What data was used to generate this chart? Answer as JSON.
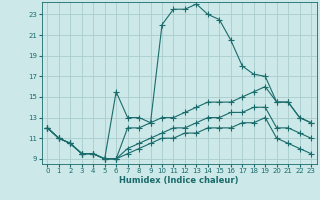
{
  "xlabel": "Humidex (Indice chaleur)",
  "bg_color": "#cce8e8",
  "grid_color": "#aacccc",
  "line_color": "#1a6b6b",
  "xlim": [
    -0.5,
    23.5
  ],
  "ylim": [
    8.5,
    24.2
  ],
  "yticks": [
    9,
    11,
    13,
    15,
    17,
    19,
    21,
    23
  ],
  "xticks": [
    0,
    1,
    2,
    3,
    4,
    5,
    6,
    7,
    8,
    9,
    10,
    11,
    12,
    13,
    14,
    15,
    16,
    17,
    18,
    19,
    20,
    21,
    22,
    23
  ],
  "series": [
    {
      "x": [
        0,
        1,
        2,
        3,
        4,
        5,
        6,
        7,
        8,
        9,
        10,
        11,
        12,
        13,
        14,
        15,
        16,
        17,
        18,
        19,
        20,
        21,
        22,
        23
      ],
      "y": [
        12,
        11,
        10.5,
        9.5,
        9.5,
        9,
        15.5,
        13,
        13,
        12.5,
        22,
        23.5,
        23.5,
        24,
        23,
        22.5,
        20.5,
        18,
        17.2,
        17,
        14.5,
        14.5,
        13,
        12.5
      ]
    },
    {
      "x": [
        0,
        1,
        2,
        3,
        4,
        5,
        6,
        7,
        8,
        9,
        10,
        11,
        12,
        13,
        14,
        15,
        16,
        17,
        18,
        19,
        20,
        21,
        22,
        23
      ],
      "y": [
        12,
        11,
        10.5,
        9.5,
        9.5,
        9,
        9,
        12,
        12,
        12.5,
        13,
        13,
        13.5,
        14,
        14.5,
        14.5,
        14.5,
        15,
        15.5,
        16,
        14.5,
        14.5,
        13,
        12.5
      ]
    },
    {
      "x": [
        0,
        1,
        2,
        3,
        4,
        5,
        6,
        7,
        8,
        9,
        10,
        11,
        12,
        13,
        14,
        15,
        16,
        17,
        18,
        19,
        20,
        21,
        22,
        23
      ],
      "y": [
        12,
        11,
        10.5,
        9.5,
        9.5,
        9,
        9,
        10,
        10.5,
        11,
        11.5,
        12,
        12,
        12.5,
        13,
        13,
        13.5,
        13.5,
        14,
        14,
        12,
        12,
        11.5,
        11
      ]
    },
    {
      "x": [
        0,
        1,
        2,
        3,
        4,
        5,
        6,
        7,
        8,
        9,
        10,
        11,
        12,
        13,
        14,
        15,
        16,
        17,
        18,
        19,
        20,
        21,
        22,
        23
      ],
      "y": [
        12,
        11,
        10.5,
        9.5,
        9.5,
        9,
        9,
        9.5,
        10,
        10.5,
        11,
        11,
        11.5,
        11.5,
        12,
        12,
        12,
        12.5,
        12.5,
        13,
        11,
        10.5,
        10,
        9.5
      ]
    }
  ]
}
